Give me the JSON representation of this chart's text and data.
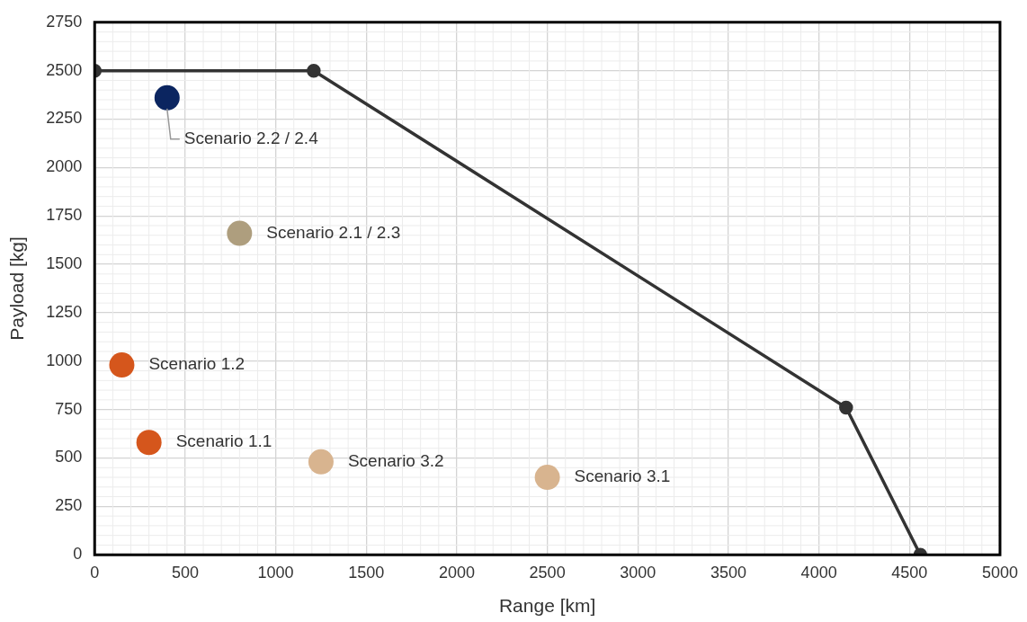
{
  "chart_data": {
    "type": "scatter",
    "xlabel": "Range [km]",
    "ylabel": "Payload [kg]",
    "xlim": [
      0,
      5000
    ],
    "xticks": [
      0,
      500,
      1000,
      1500,
      2000,
      2500,
      3000,
      3500,
      4000,
      4500,
      5000
    ],
    "ylim": [
      0,
      2750
    ],
    "yticks": [
      0,
      250,
      500,
      750,
      1000,
      1250,
      1500,
      1750,
      2000,
      2250,
      2500,
      2750
    ],
    "grid": true,
    "legend": false,
    "series": [
      {
        "type": "line",
        "x": [
          0,
          1210,
          4150,
          4560
        ],
        "values": [
          2500,
          2500,
          760,
          0
        ],
        "color": "#333333",
        "marker": "circle",
        "line_style": "solid"
      },
      {
        "name": "Scenario 2.2 / 2.4",
        "x": [
          400
        ],
        "values": [
          2360
        ],
        "color": "#0b2560"
      },
      {
        "name": "Scenario 2.1 / 2.3",
        "x": [
          800
        ],
        "values": [
          1660
        ],
        "color": "#ae9e7e"
      },
      {
        "name": "Scenario 1.2",
        "x": [
          150
        ],
        "values": [
          980
        ],
        "color": "#d5561c"
      },
      {
        "name": "Scenario 1.1",
        "x": [
          300
        ],
        "values": [
          580
        ],
        "color": "#d5561c"
      },
      {
        "name": "Scenario 3.2",
        "x": [
          1250
        ],
        "values": [
          480
        ],
        "color": "#d8b48f"
      },
      {
        "name": "Scenario 3.1",
        "x": [
          2500
        ],
        "values": [
          400
        ],
        "color": "#d8b48f"
      }
    ]
  }
}
